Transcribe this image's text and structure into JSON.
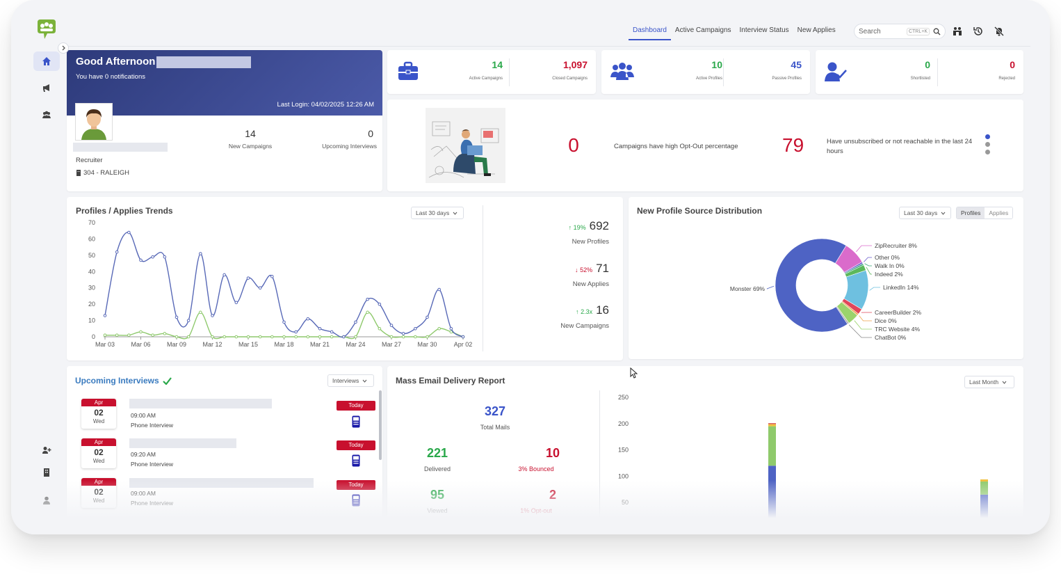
{
  "colors": {
    "primary": "#3a54c9",
    "brand_dark": "#2d3a7a",
    "green": "#2aa84a",
    "red": "#c8102e",
    "line_blue": "#5869b7",
    "line_green": "#8ec96c"
  },
  "nav": {
    "tabs": [
      {
        "label": "Dashboard",
        "active": true
      },
      {
        "label": "Active Campaigns",
        "active": false
      },
      {
        "label": "Interview Status",
        "active": false
      },
      {
        "label": "New Applies",
        "active": false
      }
    ],
    "search_placeholder": "Search",
    "search_shortcut": "CTRL+K",
    "icons": [
      "team-icon",
      "history-icon",
      "notifications-off-icon"
    ]
  },
  "sidebar": {
    "items": [
      {
        "icon": "home-icon",
        "active": true
      },
      {
        "icon": "megaphone-icon",
        "active": false
      },
      {
        "icon": "users-icon",
        "active": false
      },
      {
        "icon": "add-user-icon",
        "active": false
      },
      {
        "icon": "building-icon",
        "active": false
      },
      {
        "icon": "profile-icon",
        "active": false
      }
    ]
  },
  "welcome": {
    "greeting": "Good Afternoon",
    "notifications": "You have 0 notifications",
    "last_login": "Last Login: 04/02/2025 12:26 AM",
    "role": "Recruiter",
    "office": "304 - RALEIGH",
    "stats": [
      {
        "value": "14",
        "label": "New Campaigns"
      },
      {
        "value": "0",
        "label": "Upcoming Interviews"
      }
    ]
  },
  "kpis": {
    "campaigns": [
      {
        "value": "14",
        "label": "Active Campaigns",
        "color": "#2aa84a"
      },
      {
        "value": "1,097",
        "label": "Closed Campaigns",
        "color": "#c8102e"
      }
    ],
    "profiles": [
      {
        "value": "10",
        "label": "Active Profiles",
        "color": "#2aa84a"
      },
      {
        "value": "45",
        "label": "Passive Profiles",
        "color": "#3a54c9"
      }
    ],
    "candidates": [
      {
        "value": "0",
        "label": "Shortlisted",
        "color": "#2aa84a"
      },
      {
        "value": "0",
        "label": "Rejected",
        "color": "#c8102e"
      }
    ]
  },
  "optout": {
    "value1": "0",
    "text1": "Campaigns have high Opt-Out percentage",
    "value2": "79",
    "text2": "Have unsubscribed or not reachable in the last 24 hours"
  },
  "trends": {
    "title": "Profiles / Applies Trends",
    "period": "Last 30 days",
    "stats": [
      {
        "change": "19%",
        "direction": "up",
        "value": "692",
        "label": "New Profiles"
      },
      {
        "change": "52%",
        "direction": "down",
        "value": "71",
        "label": "New Applies"
      },
      {
        "change": "2.3x",
        "direction": "up",
        "value": "16",
        "label": "New Campaigns"
      }
    ]
  },
  "source": {
    "title": "New Profile Source Distribution",
    "period": "Last 30 days",
    "toggle": [
      "Profiles",
      "Applies"
    ],
    "toggle_active": "Profiles"
  },
  "interviews": {
    "title": "Upcoming Interviews",
    "filter": "Interviews",
    "items": [
      {
        "month": "Apr",
        "day": "02",
        "weekday": "Wed",
        "time": "09:00 AM",
        "type": "Phone Interview",
        "badge": "Today"
      },
      {
        "month": "Apr",
        "day": "02",
        "weekday": "Wed",
        "time": "09:20 AM",
        "type": "Phone Interview",
        "badge": "Today"
      },
      {
        "month": "Apr",
        "day": "02",
        "weekday": "Wed",
        "time": "09:00 AM",
        "type": "Phone Interview",
        "badge": "Today"
      }
    ]
  },
  "email": {
    "title": "Mass Email Delivery Report",
    "period": "Last Month",
    "total": "327",
    "total_label": "Total Mails",
    "delivered": "221",
    "delivered_label": "Delivered",
    "bounced": "10",
    "bounced_label": "3% Bounced",
    "viewed": "95",
    "viewed_label": "Viewed",
    "optout": "2",
    "optout_label": "1% Opt-out"
  },
  "chart_data": [
    {
      "type": "line",
      "title": "Profiles / Applies Trends",
      "x": [
        "Mar 03",
        "Mar 04",
        "Mar 05",
        "Mar 06",
        "Mar 07",
        "Mar 08",
        "Mar 09",
        "Mar 10",
        "Mar 11",
        "Mar 12",
        "Mar 13",
        "Mar 14",
        "Mar 15",
        "Mar 16",
        "Mar 17",
        "Mar 18",
        "Mar 19",
        "Mar 20",
        "Mar 21",
        "Mar 22",
        "Mar 23",
        "Mar 24",
        "Mar 25",
        "Mar 26",
        "Mar 27",
        "Mar 28",
        "Mar 29",
        "Mar 30",
        "Mar 31",
        "Apr 01",
        "Apr 02"
      ],
      "x_ticks": [
        "Mar 03",
        "Mar 06",
        "Mar 09",
        "Mar 12",
        "Mar 15",
        "Mar 18",
        "Mar 21",
        "Mar 24",
        "Mar 27",
        "Mar 30",
        "Apr 02"
      ],
      "ylim": [
        0,
        70
      ],
      "y_ticks": [
        0,
        10,
        20,
        30,
        40,
        50,
        60,
        70
      ],
      "series": [
        {
          "color": "#5869b7",
          "values": [
            13,
            52,
            64,
            47,
            49,
            49,
            12,
            10,
            51,
            13,
            38,
            21,
            36,
            30,
            37,
            9,
            3,
            11,
            5,
            3,
            0,
            9,
            23,
            20,
            7,
            2,
            5,
            12,
            29,
            5,
            0
          ]
        },
        {
          "color": "#8ec96c",
          "values": [
            1,
            1,
            1,
            3,
            1,
            2,
            0,
            0,
            15,
            0,
            0,
            0,
            0,
            0,
            0,
            0,
            0,
            0,
            0,
            0,
            0,
            0,
            15,
            5,
            0,
            0,
            0,
            0,
            5,
            3,
            0
          ]
        }
      ]
    },
    {
      "type": "pie",
      "title": "New Profile Source Distribution",
      "categories": [
        "Monster",
        "ZipRecruiter",
        "Other",
        "Walk In",
        "Indeed",
        "LinkedIn",
        "CareerBuilder",
        "Dice",
        "TRC Website",
        "ChatBot"
      ],
      "values": [
        69,
        8,
        0,
        0,
        2,
        14,
        2,
        0,
        4,
        0
      ],
      "labels": [
        "Monster 69%",
        "ZipRecruiter 8%",
        "Other 0%",
        "Walk In 0%",
        "Indeed 2%",
        "LinkedIn 14%",
        "CareerBuilder 2%",
        "Dice 0%",
        "TRC Website 4%",
        "ChatBot 0%"
      ],
      "colors": [
        "#4e63c4",
        "#da6bcb",
        "#6a5acd",
        "#3aa57a",
        "#5cb85c",
        "#6ec0e0",
        "#e0475a",
        "#f0a34a",
        "#9bd36c",
        "#b0b0b0"
      ]
    },
    {
      "type": "bar",
      "title": "Mass Email Delivery Report",
      "ylim": [
        0,
        250
      ],
      "y_ticks": [
        50,
        100,
        150,
        200,
        250
      ],
      "stacks": [
        {
          "segments": [
            {
              "color": "#4e63c4",
              "value": 120
            },
            {
              "color": "#8fca6c",
              "value": 75
            },
            {
              "color": "#f0c040",
              "value": 4
            },
            {
              "color": "#d86060",
              "value": 2
            }
          ]
        },
        {
          "segments": [
            {
              "color": "#4e63c4",
              "value": 65
            },
            {
              "color": "#8fca6c",
              "value": 25
            },
            {
              "color": "#f0c040",
              "value": 4
            }
          ]
        }
      ]
    }
  ]
}
